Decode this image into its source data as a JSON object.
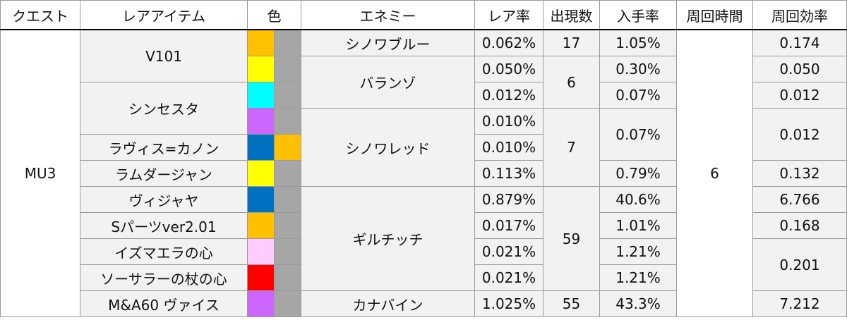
{
  "headers": {
    "quest": "クエスト",
    "rare_item": "レアアイテム",
    "color": "色",
    "enemy": "エネミー",
    "rare_rate": "レア率",
    "appear_count": "出現数",
    "obtain_rate": "入手率",
    "loop_time": "周回時間",
    "loop_efficiency": "周回効率"
  },
  "quest": "MU3",
  "loop_time": "6",
  "items": {
    "v101": "V101",
    "synsesta": "シンセスタ",
    "ravis_cannon": "ラヴィス=カノン",
    "ramdarjan": "ラムダージャン",
    "vijaya": "ヴィジャヤ",
    "s_parts": "Sパーツver2.01",
    "izumaera": "イズマエラの心",
    "sosaler": "ソーサラーの杖の心",
    "ma60": "M&A60 ヴァイス"
  },
  "enemies": {
    "sinowa_blue": "シノワブルー",
    "baranzo": "バランゾ",
    "sinowa_red": "シノワレッド",
    "gilchich": "ギルチッチ",
    "canabine": "カナバイン"
  },
  "rows": [
    {
      "rare_rate": "0.062%",
      "obtain_rate": "1.05%",
      "efficiency": "0.174",
      "color1": "#ffc000",
      "color2": "#a6a6a6"
    },
    {
      "rare_rate": "0.050%",
      "obtain_rate": "0.30%",
      "efficiency": "0.050",
      "color1": "#ffff00",
      "color2": "#a6a6a6"
    },
    {
      "rare_rate": "0.012%",
      "obtain_rate": "0.07%",
      "efficiency": "0.012",
      "color1": "#00ffff",
      "color2": "#a6a6a6"
    },
    {
      "rare_rate": "0.010%",
      "color1": "#cc66ff",
      "color2": "#a6a6a6"
    },
    {
      "rare_rate": "0.010%",
      "color1": "#0070c0",
      "color2": "#ffc000"
    },
    {
      "rare_rate": "0.113%",
      "obtain_rate": "0.79%",
      "efficiency": "0.132",
      "color1": "#ffff00",
      "color2": "#a6a6a6"
    },
    {
      "rare_rate": "0.879%",
      "obtain_rate": "40.6%",
      "efficiency": "6.766",
      "color1": "#0070c0",
      "color2": "#a6a6a6"
    },
    {
      "rare_rate": "0.017%",
      "obtain_rate": "1.01%",
      "efficiency": "0.168",
      "color1": "#ffc000",
      "color2": "#a6a6a6"
    },
    {
      "rare_rate": "0.021%",
      "obtain_rate": "1.21%",
      "color1": "#ffccff",
      "color2": "#a6a6a6"
    },
    {
      "rare_rate": "0.021%",
      "obtain_rate": "1.21%",
      "color1": "#ff0000",
      "color2": "#a6a6a6"
    },
    {
      "rare_rate": "1.025%",
      "obtain_rate": "43.3%",
      "efficiency": "7.212",
      "color1": "#cc66ff",
      "color2": "#a6a6a6"
    }
  ],
  "merged": {
    "count_sinowa_blue": "17",
    "count_baranzo": "6",
    "count_sinowa_red": "7",
    "count_gilchich": "59",
    "count_canabine": "55",
    "obtain_sinowa_red_shared": "0.07%",
    "eff_synsesta_ravis": "0.012",
    "eff_izumaera_sosaler": "0.201"
  }
}
